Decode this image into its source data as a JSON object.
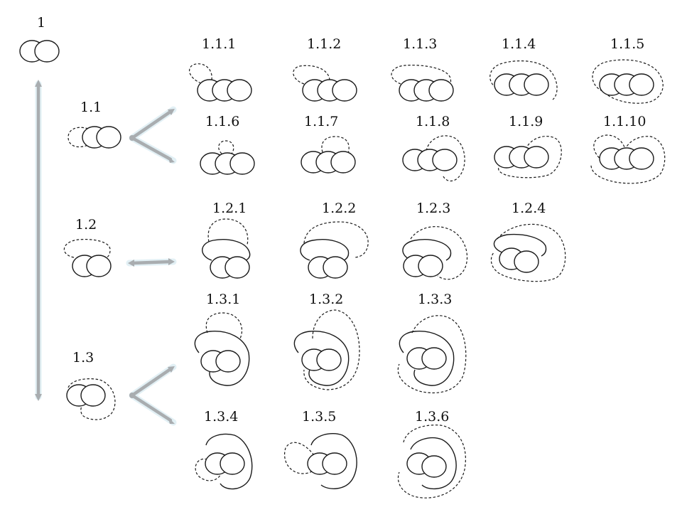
{
  "nodes": {
    "root": "1",
    "n1_1": "1.1",
    "n1_2": "1.2",
    "n1_3": "1.3",
    "n1_1_1": "1.1.1",
    "n1_1_2": "1.1.2",
    "n1_1_3": "1.1.3",
    "n1_1_4": "1.1.4",
    "n1_1_5": "1.1.5",
    "n1_1_6": "1.1.6",
    "n1_1_7": "1.1.7",
    "n1_1_8": "1.1.8",
    "n1_1_9": "1.1.9",
    "n1_1_10": "1.1.10",
    "n1_2_1": "1.2.1",
    "n1_2_2": "1.2.2",
    "n1_2_3": "1.2.3",
    "n1_2_4": "1.2.4",
    "n1_3_1": "1.3.1",
    "n1_3_2": "1.3.2",
    "n1_3_3": "1.3.3",
    "n1_3_4": "1.3.4",
    "n1_3_5": "1.3.5",
    "n1_3_6": "1.3.6"
  },
  "colors": {
    "arrow": "#a9adb0",
    "arrow_glow": "#cfe6ee",
    "stroke": "#1a1a1a"
  }
}
